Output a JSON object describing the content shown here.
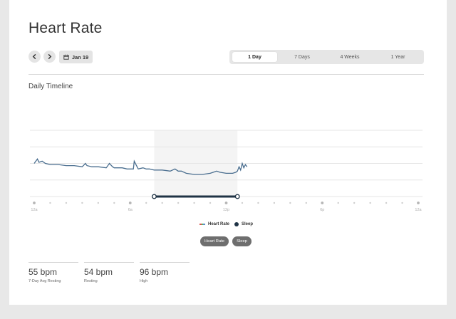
{
  "page": {
    "title": "Heart Rate",
    "section_title": "Daily Timeline"
  },
  "toolbar": {
    "prev_icon": "chevron-left-icon",
    "next_icon": "chevron-right-icon",
    "calendar_icon": "calendar-icon",
    "date_label": "Jan 19"
  },
  "range_tabs": [
    {
      "label": "1 Day",
      "active": true
    },
    {
      "label": "7 Days",
      "active": false
    },
    {
      "label": "4 Weeks",
      "active": false
    },
    {
      "label": "1 Year",
      "active": false
    }
  ],
  "legend": {
    "heart_rate_label": "Heart Rate",
    "sleep_label": "Sleep"
  },
  "pills": {
    "heart_rate": "Heart Rate",
    "sleep": "Sleep"
  },
  "stats": [
    {
      "value": "55 bpm",
      "label": "7-Day Avg Resting"
    },
    {
      "value": "54 bpm",
      "label": "Resting"
    },
    {
      "value": "96 bpm",
      "label": "High"
    }
  ],
  "colors": {
    "line": "#4a6e8f",
    "sleep_bar": "#1f3345",
    "sleep_shade": "#f4f4f4",
    "legend_swatch": [
      "#d9534f",
      "#5cb85c",
      "#5b8fc6"
    ]
  },
  "chart_data": {
    "type": "line",
    "x_ticks": [
      "12a",
      "6a",
      "12p",
      "6p",
      "12a"
    ],
    "x_range_hours": [
      0,
      24
    ],
    "y_grid_lines": 5,
    "sleep": {
      "start_hour": 7.5,
      "end_hour": 12.7
    },
    "series": [
      {
        "hours": [
          0.0,
          0.2,
          0.3,
          0.5,
          0.7,
          1.0,
          1.5,
          2.0,
          2.5,
          3.0,
          3.2,
          3.3,
          3.6,
          4.0,
          4.5,
          4.7,
          4.9,
          5.0,
          5.2,
          5.5,
          5.8,
          6.0,
          6.2,
          6.25,
          6.5,
          6.8,
          7.0,
          7.2,
          7.5,
          8.0,
          8.5,
          8.8,
          9.0,
          9.2,
          9.5,
          10.0,
          10.5,
          11.0,
          11.2,
          11.4,
          11.6,
          12.0,
          12.4,
          12.6,
          12.7,
          12.8,
          12.9,
          13.0,
          13.1,
          13.2,
          13.3
        ],
        "values": [
          70,
          74,
          71,
          72,
          70,
          69,
          69,
          68,
          68,
          67,
          70,
          68,
          67,
          67,
          66,
          70,
          67,
          66,
          66,
          66,
          65,
          65,
          65,
          72,
          65,
          66,
          65,
          65,
          64,
          64,
          63,
          65,
          63,
          63,
          61,
          60,
          60,
          61,
          62,
          63,
          62,
          61,
          61,
          62,
          63,
          67,
          64,
          70,
          66,
          69,
          67
        ]
      }
    ]
  }
}
